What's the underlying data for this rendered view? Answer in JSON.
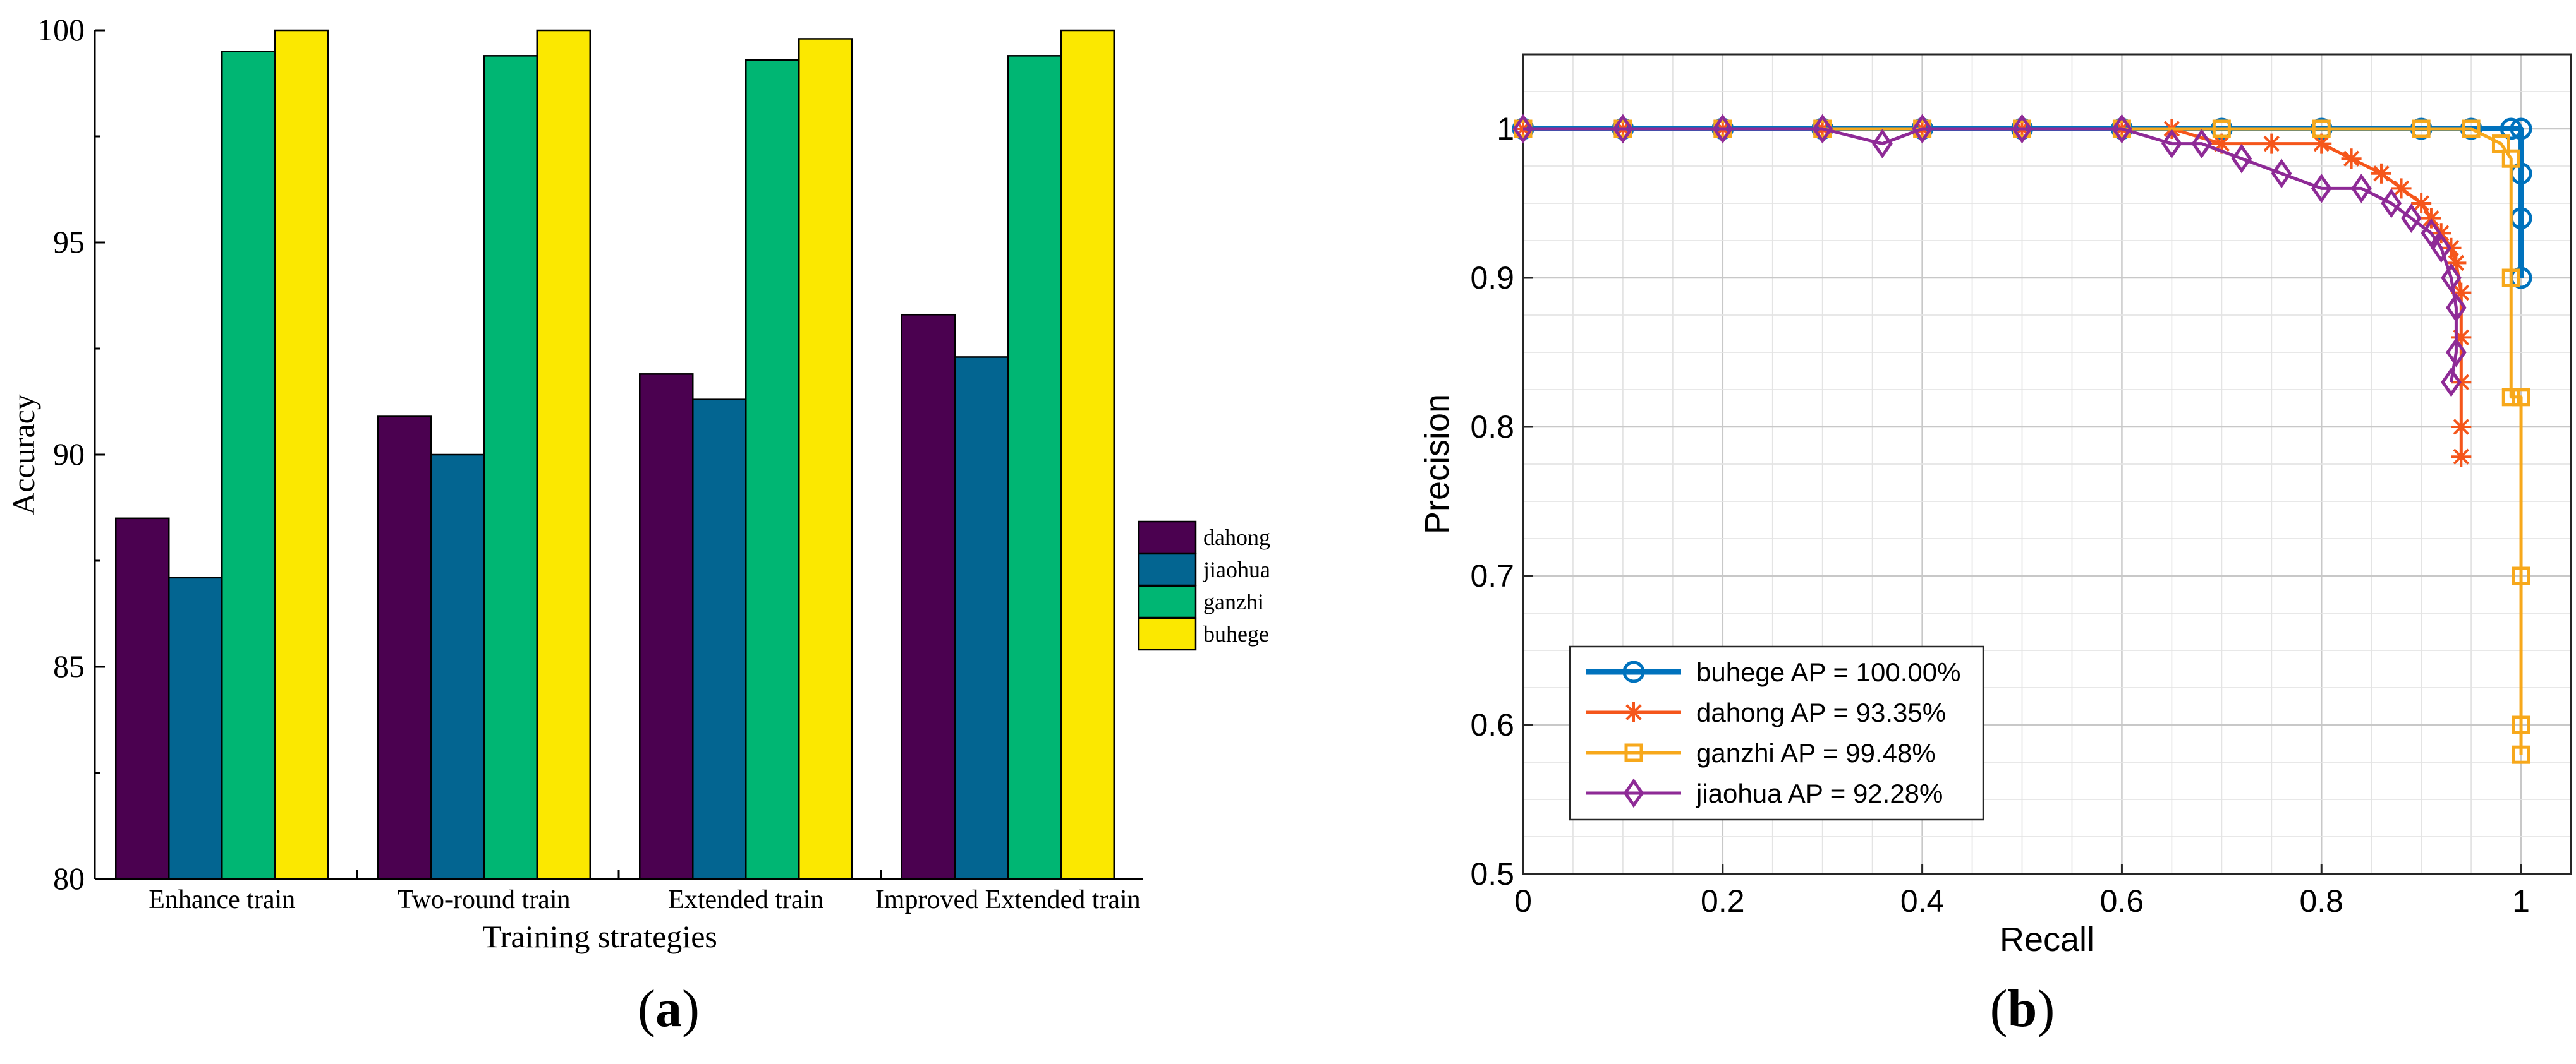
{
  "panel_labels": {
    "a": "a",
    "b": "b"
  },
  "chart_data": [
    {
      "type": "bar",
      "panel": "a",
      "title": "",
      "xlabel": "Training strategies",
      "ylabel": "Accuracy",
      "ylim": [
        80,
        100
      ],
      "yticks": [
        "80",
        "85",
        "90",
        "95",
        "100"
      ],
      "categories": [
        "Enhance train",
        "Two-round train",
        "Extended train",
        "Improved Extended train"
      ],
      "series": [
        {
          "name": "dahong",
          "color": "#4b0150",
          "values": [
            88.5,
            90.9,
            91.9,
            93.3
          ]
        },
        {
          "name": "jiaohua",
          "color": "#036591",
          "values": [
            87.1,
            90.0,
            91.3,
            92.3
          ]
        },
        {
          "name": "ganzhi",
          "color": "#00b673",
          "values": [
            99.5,
            99.4,
            99.3,
            99.4
          ]
        },
        {
          "name": "buhege",
          "color": "#fbe800",
          "values": [
            100.0,
            100.0,
            99.8,
            100.0
          ]
        }
      ],
      "legend_position": "right"
    },
    {
      "type": "line",
      "panel": "b",
      "title": "",
      "xlabel": "Recall",
      "ylabel": "Precision",
      "xlim": [
        0,
        1.05
      ],
      "ylim": [
        0.5,
        1.05
      ],
      "xticks": [
        "0",
        "0.2",
        "0.4",
        "0.6",
        "0.8",
        "1"
      ],
      "yticks": [
        "0.5",
        "0.6",
        "0.7",
        "0.8",
        "0.9",
        "1"
      ],
      "grid": true,
      "legend_position": "bottom-left",
      "series": [
        {
          "name": "buhege AP = 100.00%",
          "color": "#0072bd",
          "marker": "circle",
          "x": [
            0,
            0.1,
            0.2,
            0.3,
            0.4,
            0.5,
            0.6,
            0.7,
            0.8,
            0.9,
            0.95,
            0.99,
            1.0,
            1.0,
            1.0,
            1.0
          ],
          "y": [
            1,
            1,
            1,
            1,
            1,
            1,
            1,
            1,
            1,
            1,
            1,
            1,
            1,
            0.97,
            0.94,
            0.9
          ]
        },
        {
          "name": "dahong AP = 93.35%",
          "color": "#f5561b",
          "marker": "asterisk",
          "x": [
            0,
            0.1,
            0.2,
            0.3,
            0.4,
            0.5,
            0.6,
            0.65,
            0.7,
            0.75,
            0.8,
            0.83,
            0.86,
            0.88,
            0.9,
            0.91,
            0.92,
            0.93,
            0.935,
            0.94,
            0.94,
            0.94,
            0.94,
            0.94
          ],
          "y": [
            1,
            1,
            1,
            1,
            1,
            1,
            1,
            1,
            0.99,
            0.99,
            0.99,
            0.98,
            0.97,
            0.96,
            0.95,
            0.94,
            0.93,
            0.92,
            0.91,
            0.89,
            0.86,
            0.83,
            0.8,
            0.78
          ]
        },
        {
          "name": "ganzhi AP = 99.48%",
          "color": "#f7a81b",
          "marker": "square",
          "x": [
            0,
            0.1,
            0.2,
            0.3,
            0.4,
            0.5,
            0.6,
            0.7,
            0.8,
            0.9,
            0.95,
            0.98,
            0.99,
            0.99,
            0.99,
            1.0,
            1.0,
            1.0,
            1.0
          ],
          "y": [
            1,
            1,
            1,
            1,
            1,
            1,
            1,
            1,
            1,
            1,
            1,
            0.99,
            0.98,
            0.9,
            0.82,
            0.82,
            0.7,
            0.6,
            0.58
          ]
        },
        {
          "name": "jiaohua AP = 92.28%",
          "color": "#8e2a96",
          "marker": "diamond",
          "x": [
            0,
            0.1,
            0.2,
            0.3,
            0.36,
            0.4,
            0.5,
            0.6,
            0.65,
            0.68,
            0.72,
            0.76,
            0.8,
            0.84,
            0.87,
            0.89,
            0.91,
            0.92,
            0.93,
            0.935,
            0.935,
            0.93
          ],
          "y": [
            1,
            1,
            1,
            1,
            0.99,
            1,
            1,
            1,
            0.99,
            0.99,
            0.98,
            0.97,
            0.96,
            0.96,
            0.95,
            0.94,
            0.93,
            0.92,
            0.9,
            0.88,
            0.85,
            0.83
          ]
        }
      ]
    }
  ]
}
